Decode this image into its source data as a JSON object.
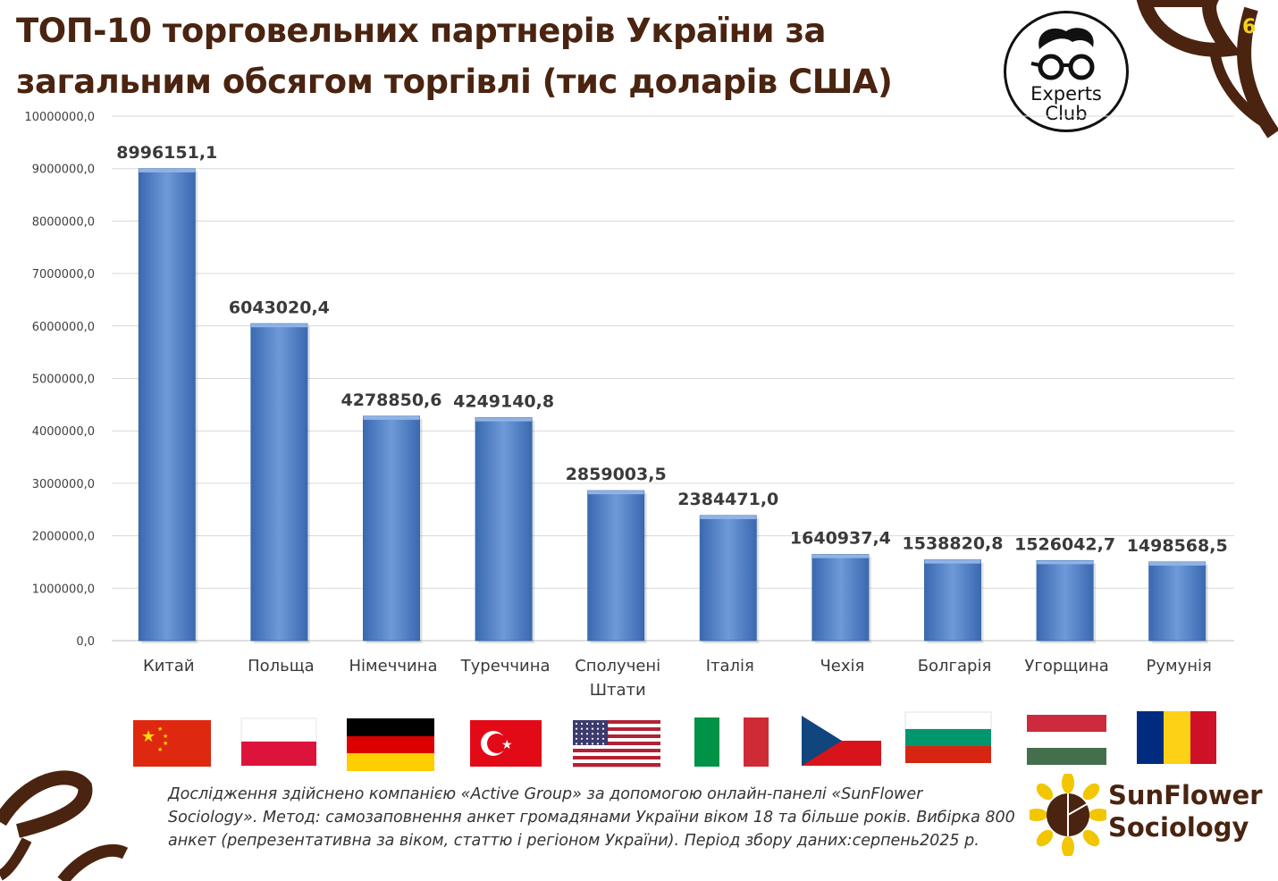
{
  "slide": {
    "title_line1": "ТОП-10 торговельних партнерів України за",
    "title_line2": "загальним обсягом торгівлі (тис доларів США)",
    "page_number": "6"
  },
  "logos": {
    "experts_line1": "Experts",
    "experts_line2": "Club",
    "sunflower_line1": "SunFlower",
    "sunflower_line2": "Sociology"
  },
  "footnote": "Дослідження здійснено компанією «Active Group» за допомогою онлайн-панелі «SunFlower Sociology». Метод: самозаповнення анкет громадянами України віком 18 та більше років. Вибірка 800 анкет (репрезентативна за віком, статтю і регіоном України). Період збору даних:серпень2025 р.",
  "colors": {
    "bar": "#4f81c7",
    "title": "#4a2410",
    "decoration": "#4a2410",
    "page_number": "#f2d21a"
  },
  "chart_data": {
    "type": "bar",
    "title": "ТОП-10 торговельних партнерів України за загальним обсягом торгівлі (тис доларів США)",
    "categories": [
      [
        "Китай"
      ],
      [
        "Польща"
      ],
      [
        "Німеччина"
      ],
      [
        "Туреччина"
      ],
      [
        "Сполучені",
        "Штати"
      ],
      [
        "Італія"
      ],
      [
        "Чехія"
      ],
      [
        "Болгарія"
      ],
      [
        "Угорщина"
      ],
      [
        "Румунія"
      ]
    ],
    "values": [
      8996151.1,
      6043020.4,
      4278850.6,
      4249140.8,
      2859003.5,
      2384471.0,
      1640937.4,
      1538820.8,
      1526042.7,
      1498568.5
    ],
    "value_labels": [
      "8996151,1",
      "6043020,4",
      "4278850,6",
      "4249140,8",
      "2859003,5",
      "2384471,0",
      "1640937,4",
      "1538820,8",
      "1526042,7",
      "1498568,5"
    ],
    "ylim": [
      0,
      10000000
    ],
    "ytick_labels": [
      "0,0",
      "1000000,0",
      "2000000,0",
      "3000000,0",
      "4000000,0",
      "5000000,0",
      "6000000,0",
      "7000000,0",
      "8000000,0",
      "9000000,0",
      "10000000,0"
    ],
    "grid": true,
    "flags": [
      "china-flag",
      "poland-flag",
      "germany-flag",
      "turkey-flag",
      "usa-flag",
      "italy-flag",
      "czech-flag",
      "bulgaria-flag",
      "hungary-flag",
      "romania-flag"
    ]
  }
}
